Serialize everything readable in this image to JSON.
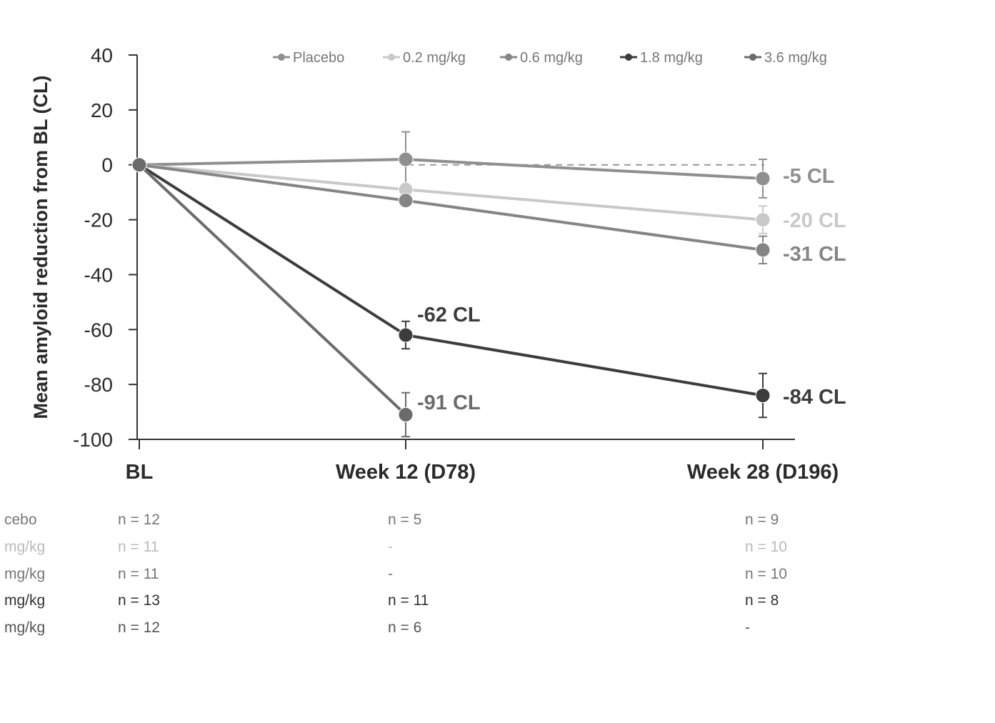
{
  "chart_data": {
    "type": "line",
    "title": "",
    "ylabel": "Mean amyloid reduction from BL (CL)",
    "xlabel": "",
    "ylim": [
      -100,
      40
    ],
    "yticks": [
      40,
      20,
      0,
      -20,
      -40,
      -60,
      -80,
      -100
    ],
    "categories": [
      "BL",
      "Week 12 (D78)",
      "Week 28 (D196)"
    ],
    "grid": false,
    "legend_position": "top",
    "series": [
      {
        "name": "Placebo",
        "color": "#8f8f8f",
        "values": [
          0,
          2,
          -5
        ],
        "errors": [
          null,
          10,
          7
        ],
        "end_label": "-5 CL",
        "label_index": 2
      },
      {
        "name": "0.2 mg/kg",
        "color": "#c9c9c9",
        "values": [
          0,
          -9,
          -20
        ],
        "errors": [
          null,
          null,
          5
        ],
        "end_label": "-20 CL",
        "label_index": 2
      },
      {
        "name": "0.6 mg/kg",
        "color": "#858585",
        "values": [
          0,
          -13,
          -31
        ],
        "errors": [
          null,
          null,
          5
        ],
        "end_label": "-31 CL",
        "label_index": 2
      },
      {
        "name": "1.8 mg/kg",
        "color": "#3c3c3c",
        "values": [
          0,
          -62,
          -84
        ],
        "errors": [
          null,
          5,
          8
        ],
        "end_label": "-84 CL",
        "label_index": 2,
        "mid_label": "-62 CL"
      },
      {
        "name": "3.6 mg/kg",
        "color": "#6b6b6b",
        "values": [
          0,
          -91,
          null
        ],
        "errors": [
          null,
          8,
          null
        ],
        "end_label": "-91 CL",
        "label_index": 1
      }
    ],
    "placebo_reference_value": 0
  },
  "n_table": {
    "rows": [
      {
        "label": "cebo",
        "color": "#777777",
        "cells": [
          "n = 12",
          "n = 5",
          "n = 9"
        ]
      },
      {
        "label": "mg/kg",
        "color": "#bbbbbb",
        "cells": [
          "n = 11",
          "-",
          "n = 10"
        ]
      },
      {
        "label": "mg/kg",
        "color": "#777777",
        "cells": [
          "n = 11",
          "-",
          "n = 10"
        ]
      },
      {
        "label": "mg/kg",
        "color": "#333333",
        "cells": [
          "n = 13",
          "n = 11",
          "n = 8"
        ]
      },
      {
        "label": "mg/kg",
        "color": "#555555",
        "cells": [
          "n = 12",
          "n = 6",
          "-"
        ]
      }
    ]
  }
}
